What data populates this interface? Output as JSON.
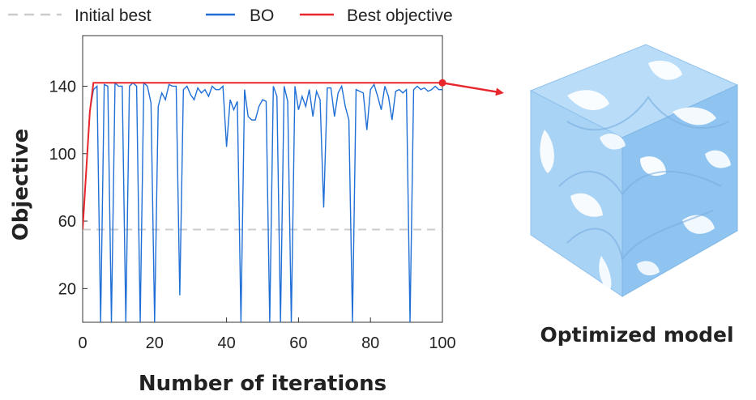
{
  "chart_data": {
    "type": "line",
    "xlabel": "Number of iterations",
    "ylabel": "Objective",
    "xlim": [
      0,
      100
    ],
    "ylim": [
      0,
      170
    ],
    "xticks": [
      "0",
      "20",
      "40",
      "60",
      "80",
      "100"
    ],
    "yticks": [
      "20",
      "60",
      "100",
      "140"
    ],
    "legend_position": "top",
    "grid": false,
    "colors": {
      "initial": "#cccccc",
      "bo": "#1f6fd6",
      "best": "#e8262b",
      "model": "#a9d3f5"
    },
    "series": [
      {
        "name": "Initial best",
        "style": "dashed",
        "x": [
          0,
          100
        ],
        "y": [
          55,
          55
        ]
      },
      {
        "name": "BO",
        "x": [
          0,
          1,
          2,
          3,
          4,
          5,
          6,
          7,
          8,
          9,
          10,
          11,
          12,
          13,
          14,
          15,
          16,
          17,
          18,
          19,
          20,
          21,
          22,
          23,
          24,
          25,
          26,
          27,
          28,
          29,
          30,
          31,
          32,
          33,
          34,
          35,
          36,
          37,
          38,
          39,
          40,
          41,
          42,
          43,
          44,
          45,
          46,
          47,
          48,
          49,
          50,
          51,
          52,
          53,
          54,
          55,
          56,
          57,
          58,
          59,
          60,
          61,
          62,
          63,
          64,
          65,
          66,
          67,
          68,
          69,
          70,
          71,
          72,
          73,
          74,
          75,
          76,
          77,
          78,
          79,
          80,
          81,
          82,
          83,
          84,
          85,
          86,
          87,
          88,
          89,
          90,
          91,
          92,
          93,
          94,
          95,
          96,
          97,
          98,
          99,
          100
        ],
        "y": [
          55,
          90,
          125,
          138,
          140,
          0,
          141,
          140,
          0,
          142,
          140,
          140,
          0,
          140,
          142,
          140,
          0,
          142,
          140,
          130,
          0,
          128,
          136,
          132,
          141,
          140,
          140,
          16,
          138,
          140,
          135,
          132,
          139,
          136,
          138,
          134,
          140,
          138,
          138,
          140,
          104,
          132,
          126,
          131,
          0,
          138,
          122,
          120,
          120,
          128,
          132,
          131,
          0,
          140,
          134,
          0,
          140,
          131,
          0,
          140,
          126,
          134,
          128,
          138,
          122,
          137,
          132,
          68,
          139,
          139,
          122,
          136,
          140,
          128,
          120,
          0,
          138,
          137,
          136,
          114,
          138,
          141,
          134,
          126,
          140,
          134,
          120,
          137,
          138,
          136,
          138,
          0,
          138,
          140,
          138,
          139,
          137,
          138,
          140,
          138,
          138
        ]
      },
      {
        "name": "Best objective",
        "x": [
          0,
          1,
          2,
          3,
          100
        ],
        "y": [
          55,
          90,
          125,
          142,
          142
        ]
      }
    ]
  },
  "model": {
    "caption": "Optimized model"
  }
}
